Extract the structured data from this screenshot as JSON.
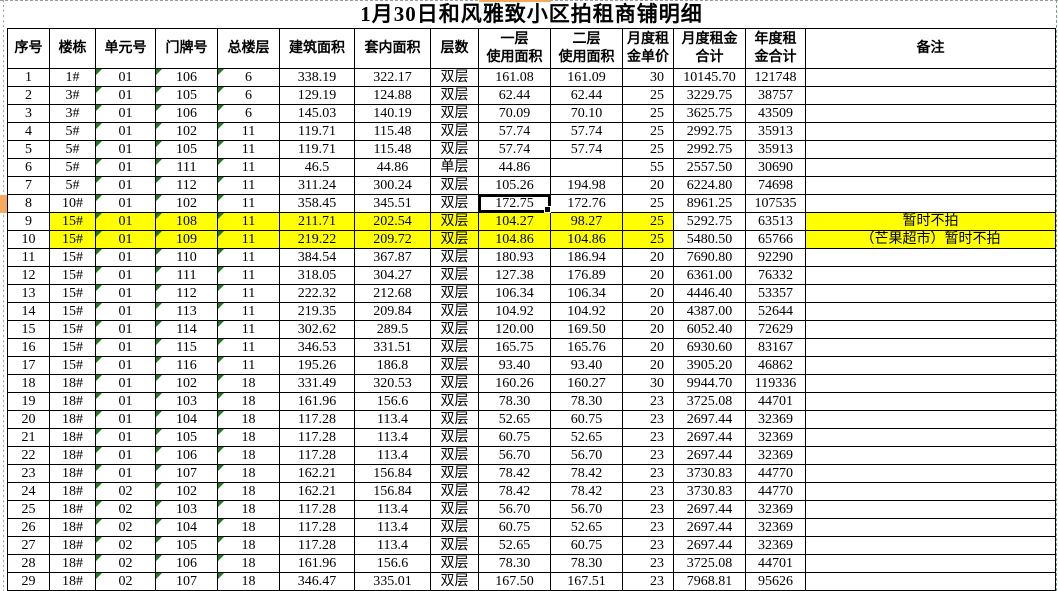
{
  "title": "1月30日和风雅致小区拍租商铺明细",
  "colors": {
    "highlight": "#FFFF00",
    "triangle_green": "#1E7B1E",
    "selection_indicator_orange": "#F5A95F",
    "pagebreak_green": "#76A489",
    "grid_border": "#000000"
  },
  "table": {
    "columns": [
      "序号",
      "楼栋",
      "单元号",
      "门牌号",
      "总楼层",
      "建筑面积",
      "套内面积",
      "层数",
      "一层\n使用面积",
      "二层\n使用面积",
      "月度租\n金单价",
      "月度租金\n合计",
      "年度租\n金合计",
      "备注"
    ],
    "column_keys": [
      "index",
      "building",
      "unit-no",
      "door-no",
      "total-floors",
      "gross-area",
      "inner-area",
      "storeys",
      "floor1-used-area",
      "floor2-used-area",
      "monthly-unit-price",
      "monthly-rent-total",
      "annual-rent-total",
      "remark"
    ],
    "rows": [
      [
        "1",
        "1#",
        "01",
        "106",
        "6",
        "338.19",
        "322.17",
        "双层",
        "161.08",
        "161.09",
        "30",
        "10145.70",
        "121748",
        ""
      ],
      [
        "2",
        "3#",
        "01",
        "105",
        "6",
        "129.19",
        "124.88",
        "双层",
        "62.44",
        "62.44",
        "25",
        "3229.75",
        "38757",
        ""
      ],
      [
        "3",
        "3#",
        "01",
        "106",
        "6",
        "145.03",
        "140.19",
        "双层",
        "70.09",
        "70.10",
        "25",
        "3625.75",
        "43509",
        ""
      ],
      [
        "4",
        "5#",
        "01",
        "102",
        "11",
        "119.71",
        "115.48",
        "双层",
        "57.74",
        "57.74",
        "25",
        "2992.75",
        "35913",
        ""
      ],
      [
        "5",
        "5#",
        "01",
        "105",
        "11",
        "119.71",
        "115.48",
        "双层",
        "57.74",
        "57.74",
        "25",
        "2992.75",
        "35913",
        ""
      ],
      [
        "6",
        "5#",
        "01",
        "111",
        "11",
        "46.5",
        "44.86",
        "单层",
        "44.86",
        "",
        "55",
        "2557.50",
        "30690",
        ""
      ],
      [
        "7",
        "5#",
        "01",
        "112",
        "11",
        "311.24",
        "300.24",
        "双层",
        "105.26",
        "194.98",
        "20",
        "6224.80",
        "74698",
        ""
      ],
      [
        "8",
        "10#",
        "01",
        "102",
        "11",
        "358.45",
        "345.51",
        "双层",
        "172.75",
        "172.76",
        "25",
        "8961.25",
        "107535",
        ""
      ],
      [
        "9",
        "15#",
        "01",
        "108",
        "11",
        "211.71",
        "202.54",
        "双层",
        "104.27",
        "98.27",
        "25",
        "5292.75",
        "63513",
        "暂时不拍"
      ],
      [
        "10",
        "15#",
        "01",
        "109",
        "11",
        "219.22",
        "209.72",
        "双层",
        "104.86",
        "104.86",
        "25",
        "5480.50",
        "65766",
        "（芒果超市）暂时不拍"
      ],
      [
        "11",
        "15#",
        "01",
        "110",
        "11",
        "384.54",
        "367.87",
        "双层",
        "180.93",
        "186.94",
        "20",
        "7690.80",
        "92290",
        ""
      ],
      [
        "12",
        "15#",
        "01",
        "111",
        "11",
        "318.05",
        "304.27",
        "双层",
        "127.38",
        "176.89",
        "20",
        "6361.00",
        "76332",
        ""
      ],
      [
        "13",
        "15#",
        "01",
        "112",
        "11",
        "222.32",
        "212.68",
        "双层",
        "106.34",
        "106.34",
        "20",
        "4446.40",
        "53357",
        ""
      ],
      [
        "14",
        "15#",
        "01",
        "113",
        "11",
        "219.35",
        "209.84",
        "双层",
        "104.92",
        "104.92",
        "20",
        "4387.00",
        "52644",
        ""
      ],
      [
        "15",
        "15#",
        "01",
        "114",
        "11",
        "302.62",
        "289.5",
        "双层",
        "120.00",
        "169.50",
        "20",
        "6052.40",
        "72629",
        ""
      ],
      [
        "16",
        "15#",
        "01",
        "115",
        "11",
        "346.53",
        "331.51",
        "双层",
        "165.75",
        "165.76",
        "20",
        "6930.60",
        "83167",
        ""
      ],
      [
        "17",
        "15#",
        "01",
        "116",
        "11",
        "195.26",
        "186.8",
        "双层",
        "93.40",
        "93.40",
        "20",
        "3905.20",
        "46862",
        ""
      ],
      [
        "18",
        "18#",
        "01",
        "102",
        "18",
        "331.49",
        "320.53",
        "双层",
        "160.26",
        "160.27",
        "30",
        "9944.70",
        "119336",
        ""
      ],
      [
        "19",
        "18#",
        "01",
        "103",
        "18",
        "161.96",
        "156.6",
        "双层",
        "78.30",
        "78.30",
        "23",
        "3725.08",
        "44701",
        ""
      ],
      [
        "20",
        "18#",
        "01",
        "104",
        "18",
        "117.28",
        "113.4",
        "双层",
        "52.65",
        "60.75",
        "23",
        "2697.44",
        "32369",
        ""
      ],
      [
        "21",
        "18#",
        "01",
        "105",
        "18",
        "117.28",
        "113.4",
        "双层",
        "60.75",
        "52.65",
        "23",
        "2697.44",
        "32369",
        ""
      ],
      [
        "22",
        "18#",
        "01",
        "106",
        "18",
        "117.28",
        "113.4",
        "双层",
        "56.70",
        "56.70",
        "23",
        "2697.44",
        "32369",
        ""
      ],
      [
        "23",
        "18#",
        "01",
        "107",
        "18",
        "162.21",
        "156.84",
        "双层",
        "78.42",
        "78.42",
        "23",
        "3730.83",
        "44770",
        ""
      ],
      [
        "24",
        "18#",
        "02",
        "102",
        "18",
        "162.21",
        "156.84",
        "双层",
        "78.42",
        "78.42",
        "23",
        "3730.83",
        "44770",
        ""
      ],
      [
        "25",
        "18#",
        "02",
        "103",
        "18",
        "117.28",
        "113.4",
        "双层",
        "56.70",
        "56.70",
        "23",
        "2697.44",
        "32369",
        ""
      ],
      [
        "26",
        "18#",
        "02",
        "104",
        "18",
        "117.28",
        "113.4",
        "双层",
        "60.75",
        "52.65",
        "23",
        "2697.44",
        "32369",
        ""
      ],
      [
        "27",
        "18#",
        "02",
        "105",
        "18",
        "117.28",
        "113.4",
        "双层",
        "52.65",
        "60.75",
        "23",
        "2697.44",
        "32369",
        ""
      ],
      [
        "28",
        "18#",
        "02",
        "106",
        "18",
        "161.96",
        "156.6",
        "双层",
        "78.30",
        "78.30",
        "23",
        "3725.08",
        "44701",
        ""
      ],
      [
        "29",
        "18#",
        "02",
        "107",
        "18",
        "346.47",
        "335.01",
        "双层",
        "167.50",
        "167.51",
        "23",
        "7968.81",
        "95626",
        ""
      ]
    ],
    "green_triangle_columns": [
      2,
      3,
      4
    ],
    "highlight": {
      "rows": [
        8,
        9
      ],
      "columns": [
        1,
        2,
        3,
        4,
        5,
        6,
        7,
        8,
        9,
        10,
        13
      ]
    },
    "selection": {
      "row_index": 7,
      "col_index": 8
    }
  }
}
